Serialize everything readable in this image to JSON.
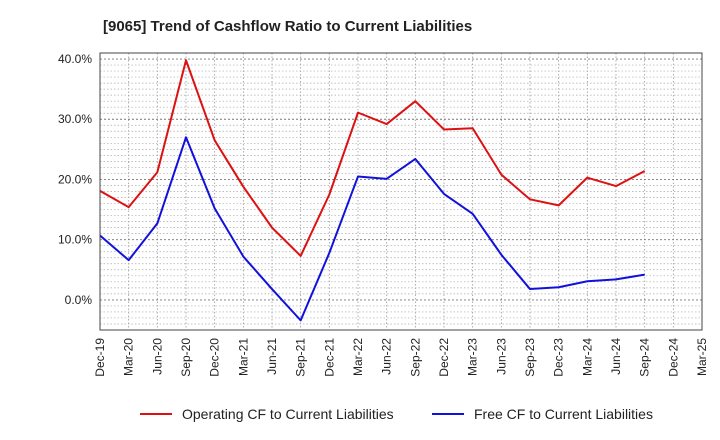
{
  "chart_data": {
    "type": "line",
    "title": "[9065]  Trend of Cashflow Ratio to Current Liabilities",
    "categories": [
      "Dec-19",
      "Mar-20",
      "Jun-20",
      "Sep-20",
      "Dec-20",
      "Mar-21",
      "Jun-21",
      "Sep-21",
      "Dec-21",
      "Mar-22",
      "Jun-22",
      "Sep-22",
      "Dec-22",
      "Mar-23",
      "Jun-23",
      "Sep-23",
      "Dec-23",
      "Mar-24",
      "Jun-24",
      "Sep-24",
      "Dec-24",
      "Mar-25"
    ],
    "y_ticks": [
      0,
      10,
      20,
      30,
      40
    ],
    "y_tick_labels": [
      "0.0%",
      "10.0%",
      "20.0%",
      "30.0%",
      "40.0%"
    ],
    "ylim": [
      -5,
      41
    ],
    "grid": true,
    "legend_position": "bottom",
    "series": [
      {
        "name": "Operating CF to Current Liabilities",
        "color": "#dd1111",
        "values": [
          18.1,
          15.4,
          21.2,
          39.8,
          26.5,
          18.8,
          12.0,
          7.3,
          17.5,
          31.1,
          29.2,
          33.0,
          28.3,
          28.5,
          20.8,
          16.7,
          15.7,
          20.3,
          18.9,
          21.4,
          null,
          null
        ]
      },
      {
        "name": "Free CF to Current Liabilities",
        "color": "#1111dd",
        "values": [
          10.7,
          6.6,
          12.7,
          27.0,
          15.2,
          7.2,
          1.8,
          -3.4,
          7.8,
          20.5,
          20.1,
          23.4,
          17.6,
          14.3,
          7.5,
          1.8,
          2.1,
          3.1,
          3.4,
          4.2,
          null,
          null
        ]
      }
    ]
  }
}
